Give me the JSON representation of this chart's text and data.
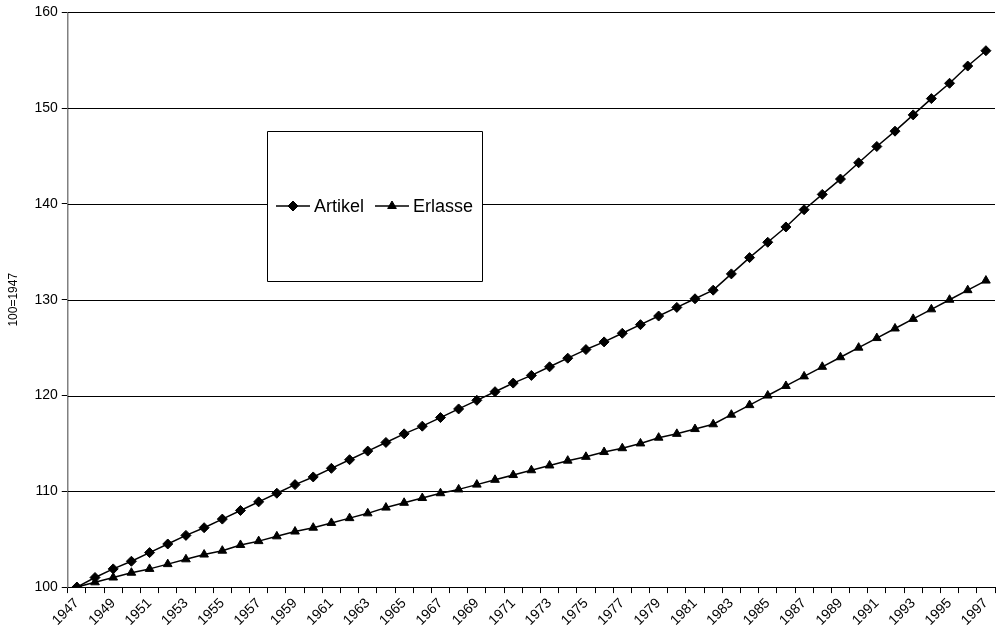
{
  "chart_data": {
    "type": "line",
    "ylabel": "100=1947",
    "categories": [
      "1947",
      null,
      "1949",
      null,
      "1951",
      null,
      "1953",
      null,
      "1955",
      null,
      "1957",
      null,
      "1959",
      null,
      "1961",
      null,
      "1963",
      null,
      "1965",
      null,
      "1967",
      null,
      "1969",
      null,
      "1971",
      null,
      "1973",
      null,
      "1975",
      null,
      "1977",
      null,
      "1979",
      null,
      "1981",
      null,
      "1983",
      null,
      "1985",
      null,
      "1987",
      null,
      "1989",
      null,
      "1991",
      null,
      "1993",
      null,
      "1995",
      null,
      "1997"
    ],
    "series": [
      {
        "name": "Artikel",
        "color": "#000000",
        "marker": "diamond",
        "values": [
          100.0,
          101.0,
          101.9,
          102.7,
          103.6,
          104.5,
          105.4,
          106.2,
          107.1,
          108.0,
          108.9,
          109.8,
          110.7,
          111.5,
          112.4,
          113.3,
          114.2,
          115.1,
          116.0,
          116.8,
          117.7,
          118.6,
          119.5,
          120.4,
          121.3,
          122.1,
          123.0,
          123.9,
          124.8,
          125.6,
          126.5,
          127.4,
          128.3,
          129.2,
          130.1,
          131.0,
          132.7,
          134.4,
          136.0,
          137.6,
          139.4,
          141.0,
          142.6,
          144.3,
          146.0,
          147.6,
          149.3,
          151.0,
          152.6,
          154.4,
          156.0
        ]
      },
      {
        "name": "Erlasse",
        "color": "#000000",
        "marker": "triangle",
        "values": [
          100.0,
          100.5,
          101.0,
          101.5,
          101.9,
          102.4,
          102.9,
          103.4,
          103.8,
          104.4,
          104.8,
          105.3,
          105.8,
          106.2,
          106.7,
          107.2,
          107.7,
          108.3,
          108.8,
          109.3,
          109.8,
          110.2,
          110.7,
          111.2,
          111.7,
          112.2,
          112.7,
          113.2,
          113.6,
          114.1,
          114.5,
          115.0,
          115.6,
          116.0,
          116.5,
          117.0,
          118.0,
          119.0,
          120.0,
          121.0,
          122.0,
          123.0,
          124.0,
          125.0,
          126.0,
          127.0,
          128.0,
          129.0,
          130.0,
          131.0,
          132.0
        ]
      }
    ],
    "ylim": [
      100,
      160
    ],
    "yticks": [
      100,
      110,
      120,
      130,
      140,
      150,
      160
    ],
    "grid": "y",
    "legend": "top left",
    "line_style": "solid"
  }
}
